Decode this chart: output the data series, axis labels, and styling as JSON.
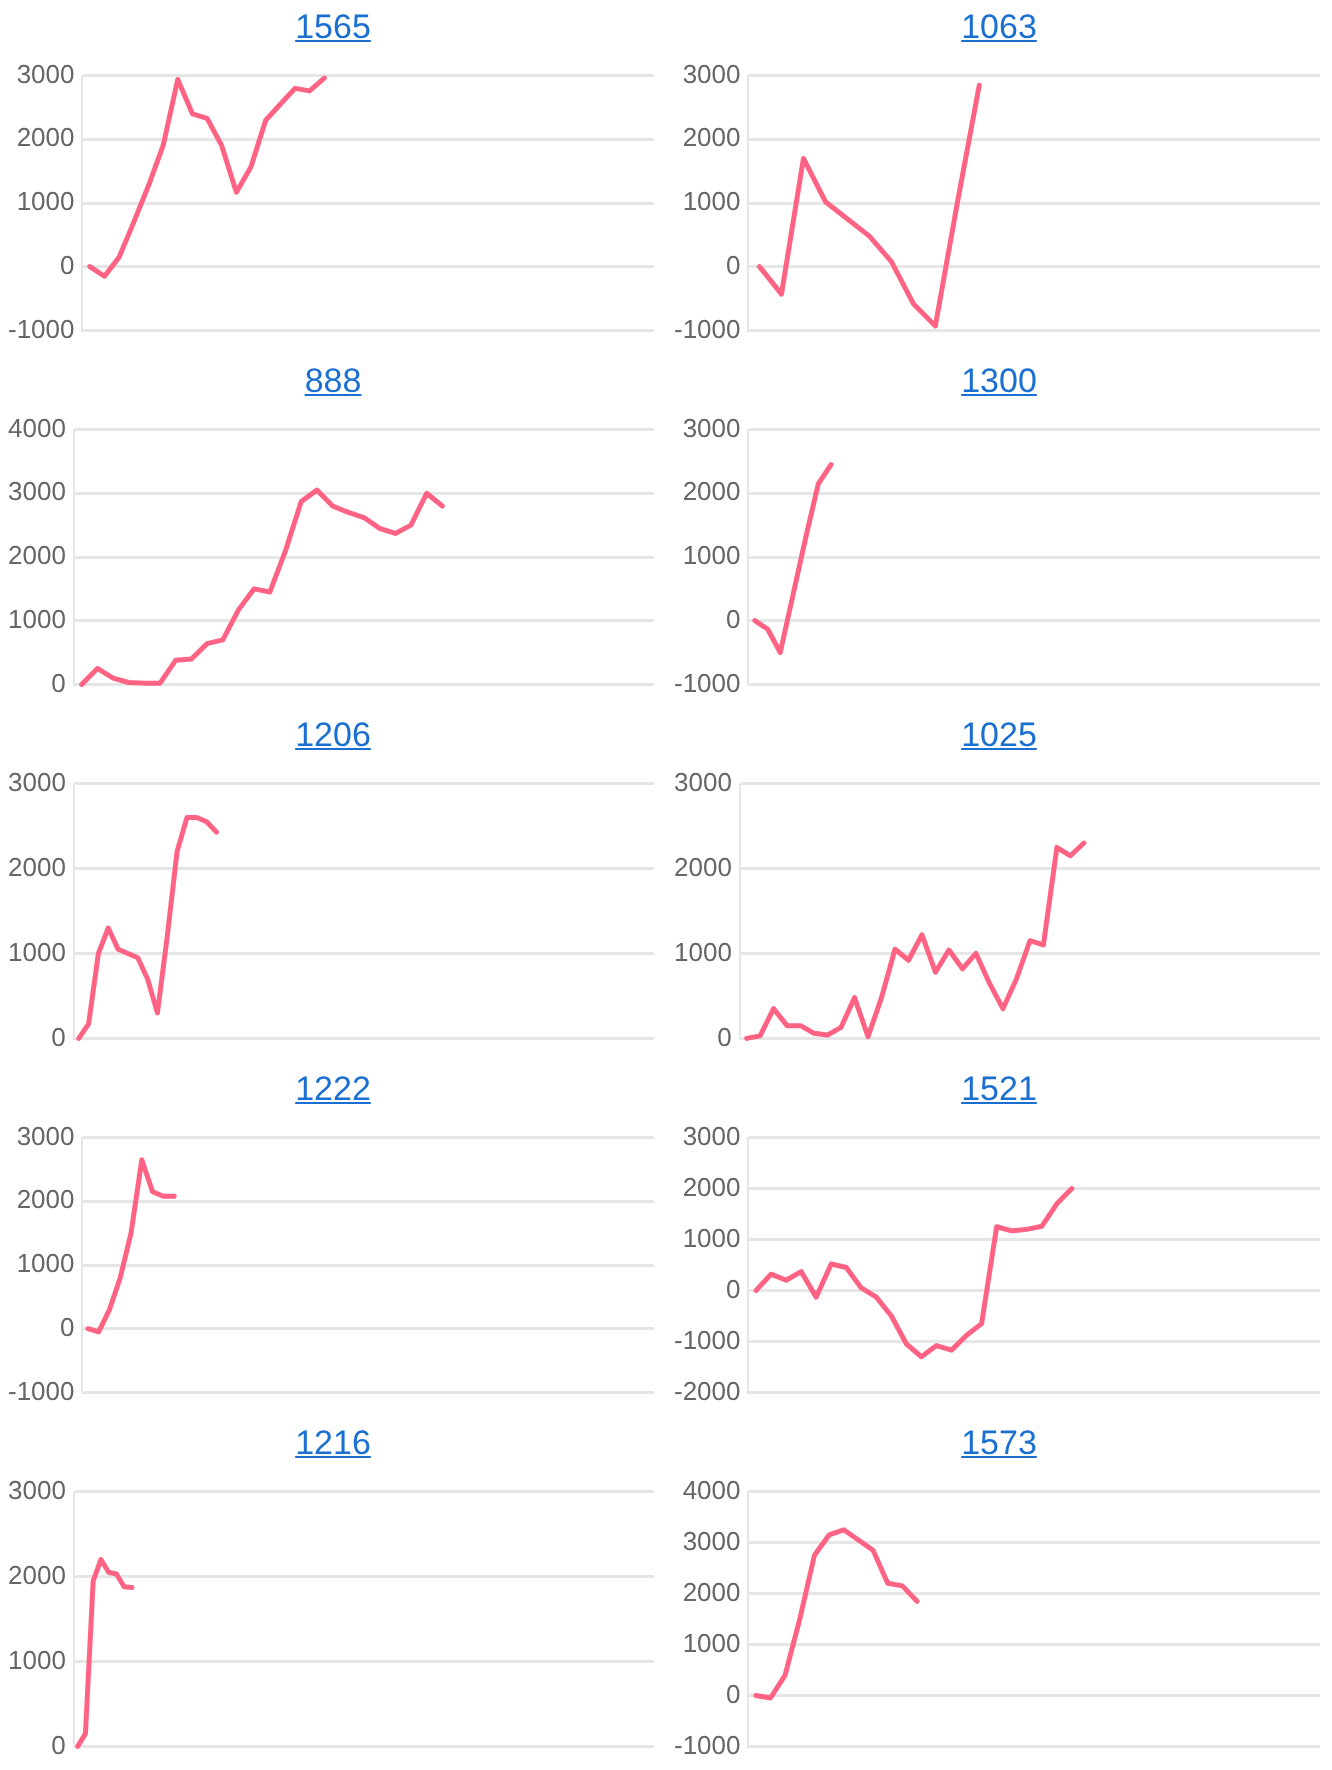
{
  "chart_data": [
    {
      "type": "line",
      "title": "1565",
      "color": "#ff6384",
      "marker": "none",
      "line_style": "solid",
      "grid": "y",
      "tick_labels": "y",
      "ylim": [
        -1000,
        3000
      ],
      "yticks": [
        -1000,
        0,
        1000,
        2000,
        3000
      ],
      "categories": [
        null,
        null,
        null,
        null,
        null,
        null,
        null,
        null,
        null,
        null,
        null,
        null,
        null,
        null,
        null,
        null,
        null,
        null,
        null,
        null,
        null,
        null,
        null,
        null,
        null,
        null,
        null,
        null,
        null,
        null,
        null,
        null,
        null,
        null,
        null,
        null,
        null,
        null,
        null
      ],
      "values": [
        0,
        -150,
        150,
        700,
        1270,
        1900,
        2940,
        2400,
        2330,
        1900,
        1170,
        1570,
        2300,
        2550,
        2800,
        2760,
        2960,
        null,
        null,
        null,
        null,
        null,
        null,
        null,
        null,
        null,
        null,
        null,
        null,
        null,
        null,
        null,
        null,
        null,
        null,
        null,
        null,
        null,
        null
      ]
    },
    {
      "type": "line",
      "title": "1063",
      "color": "#ff6384",
      "marker": "none",
      "line_style": "solid",
      "grid": "y",
      "tick_labels": "y",
      "ylim": [
        -1000,
        3000
      ],
      "yticks": [
        -1000,
        0,
        1000,
        2000,
        3000
      ],
      "categories": [
        null,
        null,
        null,
        null,
        null,
        null,
        null,
        null,
        null,
        null,
        null,
        null,
        null,
        null,
        null,
        null,
        null,
        null,
        null,
        null,
        null,
        null,
        null,
        null,
        null,
        null
      ],
      "values": [
        0,
        -430,
        1700,
        1020,
        750,
        480,
        80,
        -580,
        -930,
        1000,
        2850,
        null,
        null,
        null,
        null,
        null,
        null,
        null,
        null,
        null,
        null,
        null,
        null,
        null,
        null,
        null
      ]
    },
    {
      "type": "line",
      "title": "888",
      "color": "#ff6384",
      "marker": "none",
      "line_style": "solid",
      "grid": "y",
      "tick_labels": "y",
      "ylim": [
        0,
        4000
      ],
      "yticks": [
        0,
        1000,
        2000,
        3000,
        4000
      ],
      "categories": [
        null,
        null,
        null,
        null,
        null,
        null,
        null,
        null,
        null,
        null,
        null,
        null,
        null,
        null,
        null,
        null,
        null,
        null,
        null,
        null,
        null,
        null,
        null,
        null,
        null,
        null,
        null,
        null,
        null,
        null,
        null,
        null,
        null,
        null,
        null,
        null,
        null
      ],
      "values": [
        0,
        250,
        100,
        30,
        20,
        20,
        380,
        400,
        640,
        700,
        1170,
        1500,
        1450,
        2100,
        2870,
        3050,
        2800,
        2700,
        2620,
        2450,
        2370,
        2500,
        3000,
        2800,
        null,
        null,
        null,
        null,
        null,
        null,
        null,
        null,
        null,
        null,
        null,
        null,
        null
      ]
    },
    {
      "type": "line",
      "title": "1300",
      "color": "#ff6384",
      "marker": "none",
      "line_style": "solid",
      "grid": "y",
      "tick_labels": "y",
      "ylim": [
        -1000,
        3000
      ],
      "yticks": [
        -1000,
        0,
        1000,
        2000,
        3000
      ],
      "categories": [
        null,
        null,
        null,
        null,
        null,
        null,
        null,
        null,
        null,
        null,
        null,
        null,
        null,
        null,
        null,
        null,
        null,
        null,
        null,
        null,
        null,
        null,
        null,
        null,
        null,
        null,
        null,
        null,
        null,
        null,
        null,
        null,
        null,
        null,
        null,
        null,
        null,
        null,
        null,
        null,
        null,
        null,
        null,
        null,
        null
      ],
      "values": [
        0,
        -130,
        -500,
        400,
        1300,
        2150,
        2450,
        null,
        null,
        null,
        null,
        null,
        null,
        null,
        null,
        null,
        null,
        null,
        null,
        null,
        null,
        null,
        null,
        null,
        null,
        null,
        null,
        null,
        null,
        null,
        null,
        null,
        null,
        null,
        null,
        null,
        null,
        null,
        null,
        null,
        null,
        null,
        null,
        null,
        null
      ]
    },
    {
      "type": "line",
      "title": "1206",
      "color": "#ff6384",
      "marker": "none",
      "line_style": "solid",
      "grid": "y",
      "tick_labels": "y",
      "ylim": [
        0,
        3000
      ],
      "yticks": [
        0,
        1000,
        2000,
        3000
      ],
      "categories": [
        null,
        null,
        null,
        null,
        null,
        null,
        null,
        null,
        null,
        null,
        null,
        null,
        null,
        null,
        null,
        null,
        null,
        null,
        null,
        null,
        null,
        null,
        null,
        null,
        null,
        null,
        null,
        null,
        null,
        null,
        null,
        null,
        null,
        null,
        null,
        null,
        null,
        null,
        null,
        null,
        null,
        null,
        null,
        null,
        null,
        null,
        null,
        null,
        null,
        null,
        null,
        null,
        null,
        null,
        null,
        null,
        null,
        null,
        null
      ],
      "values": [
        0,
        170,
        1000,
        1300,
        1050,
        1000,
        950,
        700,
        300,
        1200,
        2200,
        2600,
        2600,
        2550,
        2430,
        null,
        null,
        null,
        null,
        null,
        null,
        null,
        null,
        null,
        null,
        null,
        null,
        null,
        null,
        null,
        null,
        null,
        null,
        null,
        null,
        null,
        null,
        null,
        null,
        null,
        null,
        null,
        null,
        null,
        null,
        null,
        null,
        null,
        null,
        null,
        null,
        null,
        null,
        null,
        null,
        null,
        null,
        null,
        null
      ]
    },
    {
      "type": "line",
      "title": "1025",
      "color": "#ff6384",
      "marker": "none",
      "line_style": "solid",
      "grid": "y",
      "tick_labels": "y",
      "ylim": [
        0,
        3000
      ],
      "yticks": [
        0,
        1000,
        2000,
        3000
      ],
      "categories": [
        null,
        null,
        null,
        null,
        null,
        null,
        null,
        null,
        null,
        null,
        null,
        null,
        null,
        null,
        null,
        null,
        null,
        null,
        null,
        null,
        null,
        null,
        null,
        null,
        null,
        null,
        null,
        null,
        null,
        null,
        null,
        null,
        null,
        null,
        null,
        null,
        null,
        null,
        null,
        null,
        null,
        null,
        null
      ],
      "values": [
        0,
        30,
        350,
        150,
        150,
        60,
        40,
        130,
        480,
        20,
        480,
        1050,
        920,
        1220,
        780,
        1040,
        820,
        1000,
        650,
        350,
        700,
        1150,
        1100,
        2250,
        2150,
        2300,
        null,
        null,
        null,
        null,
        null,
        null,
        null,
        null,
        null,
        null,
        null,
        null,
        null,
        null,
        null,
        null,
        null
      ]
    },
    {
      "type": "line",
      "title": "1222",
      "color": "#ff6384",
      "marker": "none",
      "line_style": "solid",
      "grid": "y",
      "tick_labels": "y",
      "ylim": [
        -1000,
        3000
      ],
      "yticks": [
        -1000,
        0,
        1000,
        2000,
        3000
      ],
      "categories": [
        null,
        null,
        null,
        null,
        null,
        null,
        null,
        null,
        null,
        null,
        null,
        null,
        null,
        null,
        null,
        null,
        null,
        null,
        null,
        null,
        null,
        null,
        null,
        null,
        null,
        null,
        null,
        null,
        null,
        null,
        null,
        null,
        null,
        null,
        null,
        null,
        null,
        null,
        null,
        null,
        null,
        null,
        null,
        null,
        null,
        null,
        null,
        null,
        null,
        null,
        null,
        null,
        null
      ],
      "values": [
        0,
        -50,
        300,
        800,
        1500,
        2650,
        2150,
        2080,
        2080,
        null,
        null,
        null,
        null,
        null,
        null,
        null,
        null,
        null,
        null,
        null,
        null,
        null,
        null,
        null,
        null,
        null,
        null,
        null,
        null,
        null,
        null,
        null,
        null,
        null,
        null,
        null,
        null,
        null,
        null,
        null,
        null,
        null,
        null,
        null,
        null,
        null,
        null,
        null,
        null,
        null,
        null,
        null,
        null
      ]
    },
    {
      "type": "line",
      "title": "1521",
      "color": "#ff6384",
      "marker": "none",
      "line_style": "solid",
      "grid": "y",
      "tick_labels": "y",
      "ylim": [
        -2000,
        3000
      ],
      "yticks": [
        -2000,
        -1000,
        0,
        1000,
        2000,
        3000
      ],
      "categories": [
        null,
        null,
        null,
        null,
        null,
        null,
        null,
        null,
        null,
        null,
        null,
        null,
        null,
        null,
        null,
        null,
        null,
        null,
        null,
        null,
        null,
        null,
        null,
        null,
        null,
        null,
        null,
        null,
        null,
        null,
        null,
        null,
        null,
        null,
        null,
        null,
        null,
        null
      ],
      "values": [
        0,
        320,
        200,
        370,
        -130,
        520,
        450,
        50,
        -130,
        -500,
        -1050,
        -1300,
        -1080,
        -1170,
        -880,
        -650,
        1250,
        1170,
        1200,
        1260,
        1700,
        2000,
        null,
        null,
        null,
        null,
        null,
        null,
        null,
        null,
        null,
        null,
        null,
        null,
        null,
        null,
        null,
        null
      ]
    },
    {
      "type": "line",
      "title": "1216",
      "color": "#ff6384",
      "marker": "none",
      "line_style": "solid",
      "grid": "y",
      "tick_labels": "y",
      "ylim": [
        0,
        3000
      ],
      "yticks": [
        0,
        1000,
        2000,
        3000
      ],
      "categories": [
        null,
        null,
        null,
        null,
        null,
        null,
        null,
        null,
        null,
        null,
        null,
        null,
        null,
        null,
        null,
        null,
        null,
        null,
        null,
        null,
        null,
        null,
        null,
        null,
        null,
        null,
        null,
        null,
        null,
        null,
        null,
        null,
        null,
        null,
        null,
        null,
        null,
        null,
        null,
        null,
        null,
        null,
        null,
        null,
        null,
        null,
        null,
        null,
        null,
        null,
        null,
        null,
        null,
        null,
        null,
        null,
        null,
        null,
        null,
        null,
        null,
        null,
        null,
        null,
        null,
        null,
        null,
        null,
        null,
        null,
        null,
        null,
        null,
        null,
        null
      ],
      "values": [
        0,
        150,
        1950,
        2200,
        2050,
        2030,
        1880,
        1870,
        null,
        null,
        null,
        null,
        null,
        null,
        null,
        null,
        null,
        null,
        null,
        null,
        null,
        null,
        null,
        null,
        null,
        null,
        null,
        null,
        null,
        null,
        null,
        null,
        null,
        null,
        null,
        null,
        null,
        null,
        null,
        null,
        null,
        null,
        null,
        null,
        null,
        null,
        null,
        null,
        null,
        null,
        null,
        null,
        null,
        null,
        null,
        null,
        null,
        null,
        null,
        null,
        null,
        null,
        null,
        null,
        null,
        null,
        null,
        null,
        null,
        null,
        null,
        null,
        null,
        null,
        null
      ]
    },
    {
      "type": "line",
      "title": "1573",
      "color": "#ff6384",
      "marker": "none",
      "line_style": "solid",
      "grid": "y",
      "tick_labels": "y",
      "ylim": [
        -1000,
        4000
      ],
      "yticks": [
        -1000,
        0,
        1000,
        2000,
        3000,
        4000
      ],
      "categories": [
        null,
        null,
        null,
        null,
        null,
        null,
        null,
        null,
        null,
        null,
        null,
        null,
        null,
        null,
        null,
        null,
        null,
        null,
        null,
        null,
        null,
        null,
        null,
        null,
        null,
        null,
        null,
        null,
        null,
        null,
        null,
        null,
        null,
        null,
        null,
        null,
        null,
        null,
        null
      ],
      "values": [
        0,
        -50,
        400,
        1500,
        2750,
        3150,
        3250,
        3050,
        2850,
        2200,
        2150,
        1850,
        null,
        null,
        null,
        null,
        null,
        null,
        null,
        null,
        null,
        null,
        null,
        null,
        null,
        null,
        null,
        null,
        null,
        null,
        null,
        null,
        null,
        null,
        null,
        null,
        null,
        null,
        null
      ]
    }
  ]
}
